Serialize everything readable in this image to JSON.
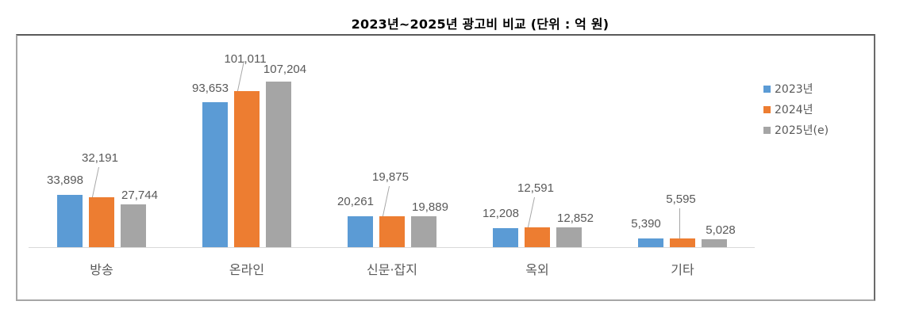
{
  "title": "2023년~2025년 광고비 비교 (단위 : 억 원)",
  "legend": [
    {
      "label": "2023년",
      "color": "#5b9bd5"
    },
    {
      "label": "2024년",
      "color": "#ed7d31"
    },
    {
      "label": "2025년(e)",
      "color": "#a5a5a5"
    }
  ],
  "categories": [
    "방송",
    "온라인",
    "신문·잡지",
    "옥외",
    "기타"
  ],
  "value_labels": {
    "방송": [
      "33,898",
      "32,191",
      "27,744"
    ],
    "온라인": [
      "93,653",
      "101,011",
      "107,204"
    ],
    "신문·잡지": [
      "20,261",
      "19,875",
      "19,889"
    ],
    "옥외": [
      "12,208",
      "12,591",
      "12,852"
    ],
    "기타": [
      "5,390",
      "5,595",
      "5,028"
    ]
  },
  "chart_data": {
    "type": "bar",
    "title": "2023년~2025년 광고비 비교 (단위 : 억 원)",
    "xlabel": "",
    "ylabel": "억 원",
    "categories": [
      "방송",
      "온라인",
      "신문·잡지",
      "옥외",
      "기타"
    ],
    "series": [
      {
        "name": "2023년",
        "color": "#5b9bd5",
        "values": [
          33898,
          93653,
          20261,
          12208,
          5390
        ]
      },
      {
        "name": "2024년",
        "color": "#ed7d31",
        "values": [
          32191,
          101011,
          19875,
          12591,
          5595
        ]
      },
      {
        "name": "2025년(e)",
        "color": "#a5a5a5",
        "values": [
          27744,
          107204,
          19889,
          12852,
          5028
        ]
      }
    ],
    "ylim": [
      0,
      110000
    ],
    "grid": false,
    "legend_position": "right",
    "data_labels": true
  }
}
